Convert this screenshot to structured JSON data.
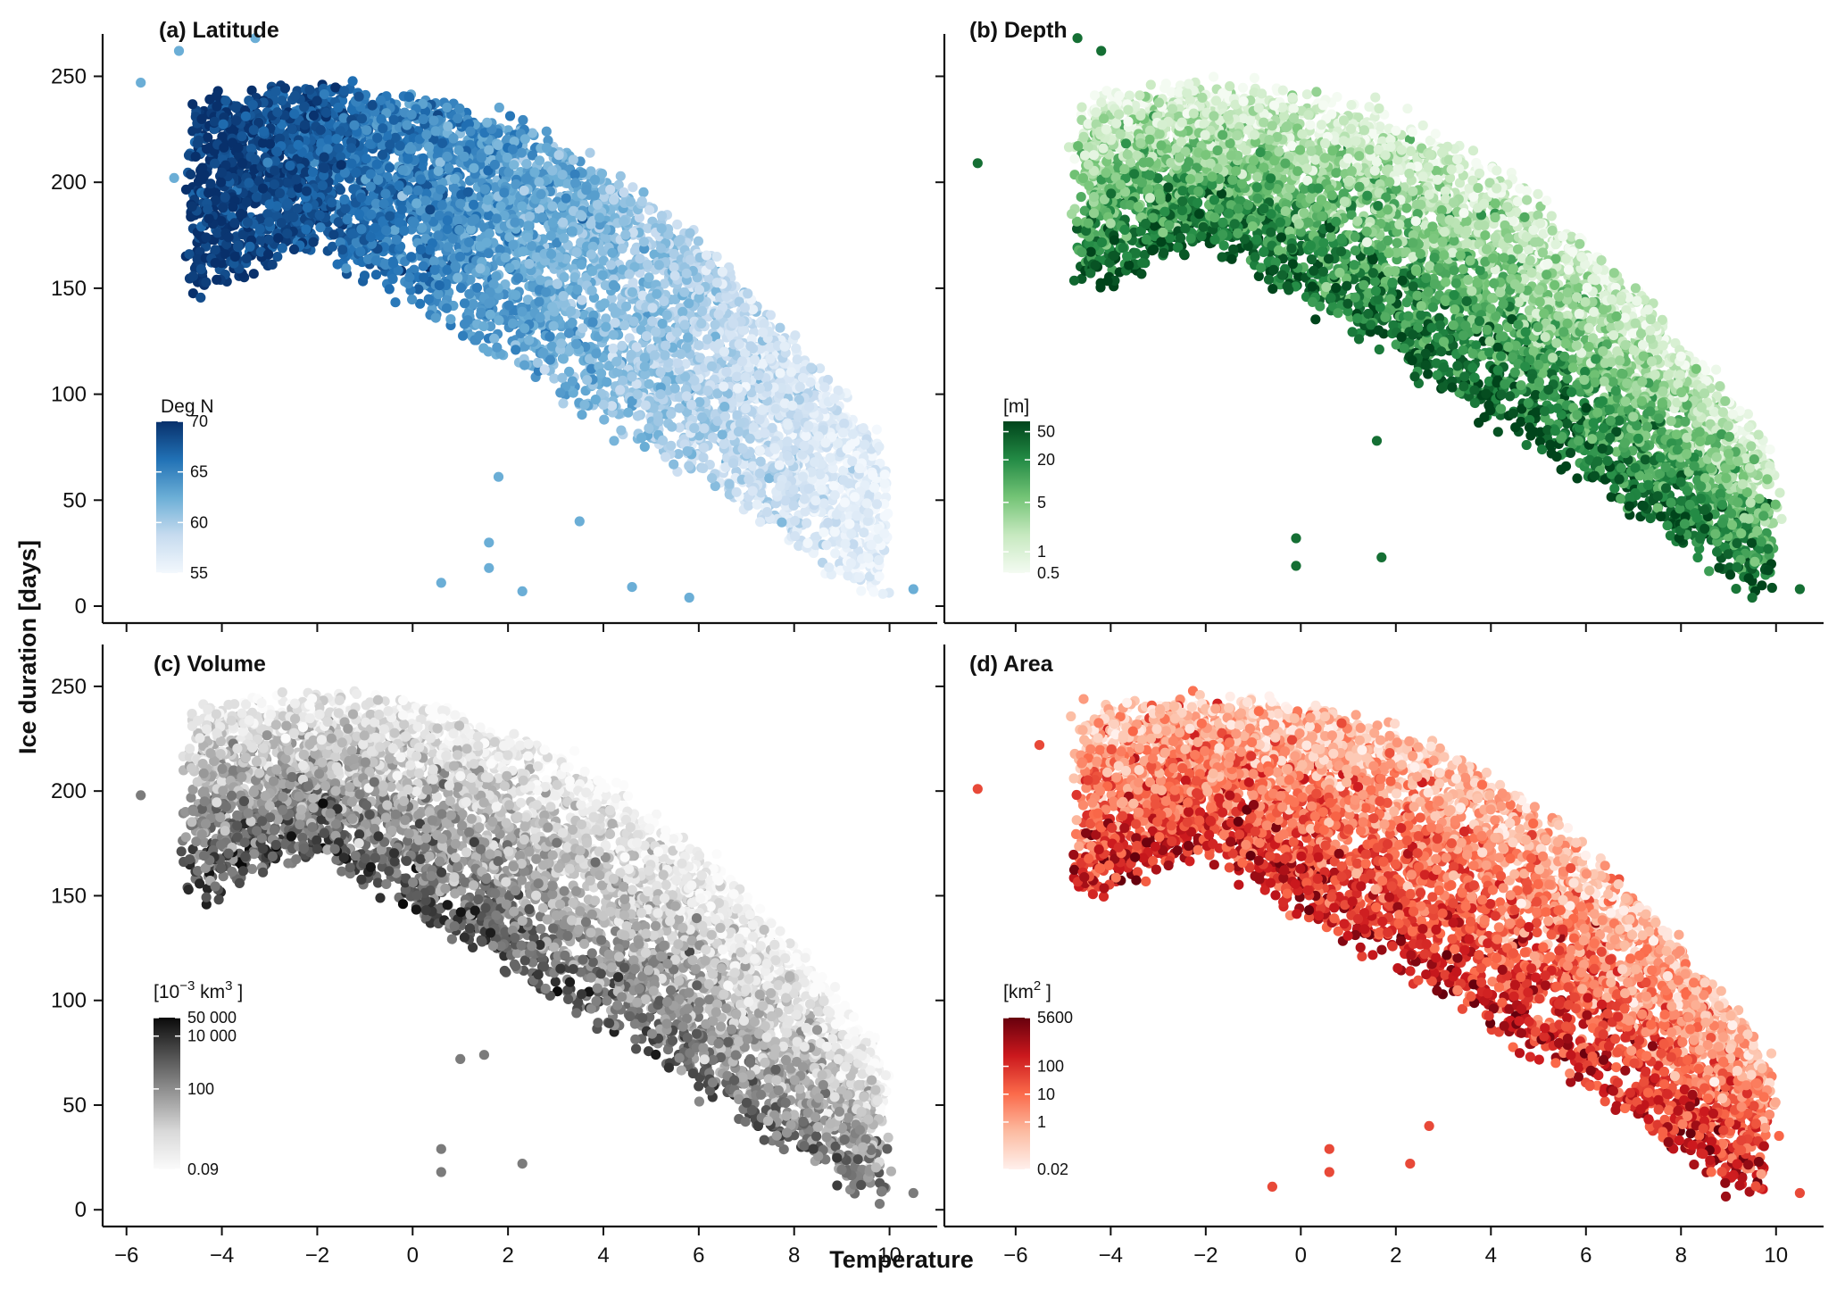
{
  "figure": {
    "ylabel": "Ice duration [days]",
    "xlabel": "Temperature",
    "x_ticks": [
      "−6",
      "−4",
      "−2",
      "0",
      "2",
      "4",
      "6",
      "8",
      "10"
    ],
    "y_ticks": [
      "0",
      "50",
      "100",
      "150",
      "200",
      "250"
    ]
  },
  "chart_data": [
    {
      "type": "scatter",
      "title": "(a) Latitude",
      "xlim": [
        -6.5,
        11
      ],
      "ylim": [
        -8,
        270
      ],
      "color_variable": "latitude",
      "palette": [
        "#f3f8fd",
        "#c6dbef",
        "#6baed6",
        "#2171b5",
        "#08306b"
      ],
      "legend": {
        "title": "Deg N",
        "title_sup": "",
        "title_end": "",
        "scale": "linear",
        "range": [
          55,
          70
        ],
        "ticks": [
          {
            "value": 70,
            "label": "70"
          },
          {
            "value": 65,
            "label": "65"
          },
          {
            "value": 60,
            "label": "60"
          },
          {
            "value": 55,
            "label": "55"
          }
        ]
      },
      "pattern": "latitude",
      "outliers": [
        {
          "x": -5.7,
          "y": 247
        },
        {
          "x": -4.9,
          "y": 262
        },
        {
          "x": -3.3,
          "y": 268
        },
        {
          "x": -5.0,
          "y": 202
        },
        {
          "x": 0.6,
          "y": 11
        },
        {
          "x": 1.6,
          "y": 30
        },
        {
          "x": 1.6,
          "y": 18
        },
        {
          "x": 2.3,
          "y": 7
        },
        {
          "x": 1.8,
          "y": 61
        },
        {
          "x": 3.5,
          "y": 40
        },
        {
          "x": 4.6,
          "y": 9
        },
        {
          "x": 5.8,
          "y": 4
        },
        {
          "x": 10.5,
          "y": 8
        }
      ]
    },
    {
      "type": "scatter",
      "title": "(b) Depth",
      "xlim": [
        -7.5,
        11
      ],
      "ylim": [
        -8,
        270
      ],
      "color_variable": "depth",
      "palette": [
        "#f4fbf2",
        "#c7e9c0",
        "#74c476",
        "#238b45",
        "#00441b"
      ],
      "legend": {
        "title": "[m]",
        "title_sup": "",
        "title_end": "",
        "scale": "log",
        "range": [
          0.5,
          70
        ],
        "ticks": [
          {
            "value": 50,
            "label": "50"
          },
          {
            "value": 20,
            "label": "20"
          },
          {
            "value": 5,
            "label": "5"
          },
          {
            "value": 1,
            "label": "1"
          },
          {
            "value": 0.5,
            "label": "0.5"
          }
        ]
      },
      "pattern": "depth",
      "outliers": [
        {
          "x": -6.8,
          "y": 209
        },
        {
          "x": -4.7,
          "y": 268
        },
        {
          "x": -4.2,
          "y": 262
        },
        {
          "x": -0.1,
          "y": 32
        },
        {
          "x": -0.1,
          "y": 19
        },
        {
          "x": 1.7,
          "y": 23
        },
        {
          "x": 1.6,
          "y": 78
        },
        {
          "x": 10.5,
          "y": 8
        },
        {
          "x": 9.5,
          "y": 4
        }
      ]
    },
    {
      "type": "scatter",
      "title": "(c) Volume",
      "xlim": [
        -6.5,
        11
      ],
      "ylim": [
        -8,
        270
      ],
      "color_variable": "volume",
      "palette": [
        "#fbfbfb",
        "#d9d9d9",
        "#969696",
        "#525252",
        "#0a0a0a"
      ],
      "legend": {
        "title": "[10",
        "title_sup": "−3",
        "title_end": " km",
        "title_sup2": "3",
        "title_close": " ]",
        "scale": "log",
        "range": [
          0.09,
          50000
        ],
        "ticks": [
          {
            "value": 50000,
            "label": "50 000"
          },
          {
            "value": 10000,
            "label": "10 000"
          },
          {
            "value": 100,
            "label": "100"
          },
          {
            "value": 0.09,
            "label": "0.09"
          }
        ]
      },
      "pattern": "volume",
      "outliers": [
        {
          "x": -5.7,
          "y": 198
        },
        {
          "x": 0.6,
          "y": 29
        },
        {
          "x": 0.6,
          "y": 18
        },
        {
          "x": 2.3,
          "y": 22
        },
        {
          "x": 10.5,
          "y": 8
        },
        {
          "x": 1.0,
          "y": 72
        },
        {
          "x": 1.5,
          "y": 74
        }
      ]
    },
    {
      "type": "scatter",
      "title": "(d) Area",
      "xlim": [
        -7.5,
        11
      ],
      "ylim": [
        -8,
        270
      ],
      "color_variable": "area",
      "palette": [
        "#fff0ec",
        "#fcbba1",
        "#fb6a4a",
        "#cb181d",
        "#67000d"
      ],
      "legend": {
        "title": "[km",
        "title_sup": "2",
        "title_end": " ]",
        "scale": "log",
        "range": [
          0.02,
          5600
        ],
        "ticks": [
          {
            "value": 5600,
            "label": "5600"
          },
          {
            "value": 100,
            "label": "100"
          },
          {
            "value": 10,
            "label": "10"
          },
          {
            "value": 1,
            "label": "1"
          },
          {
            "value": 0.02,
            "label": "0.02"
          }
        ]
      },
      "pattern": "area",
      "outliers": [
        {
          "x": -6.8,
          "y": 201
        },
        {
          "x": -0.6,
          "y": 11
        },
        {
          "x": 0.6,
          "y": 29
        },
        {
          "x": 0.6,
          "y": 18
        },
        {
          "x": 2.3,
          "y": 22
        },
        {
          "x": 10.5,
          "y": 8
        },
        {
          "x": -5.5,
          "y": 222
        },
        {
          "x": 2.7,
          "y": 40
        }
      ]
    }
  ]
}
